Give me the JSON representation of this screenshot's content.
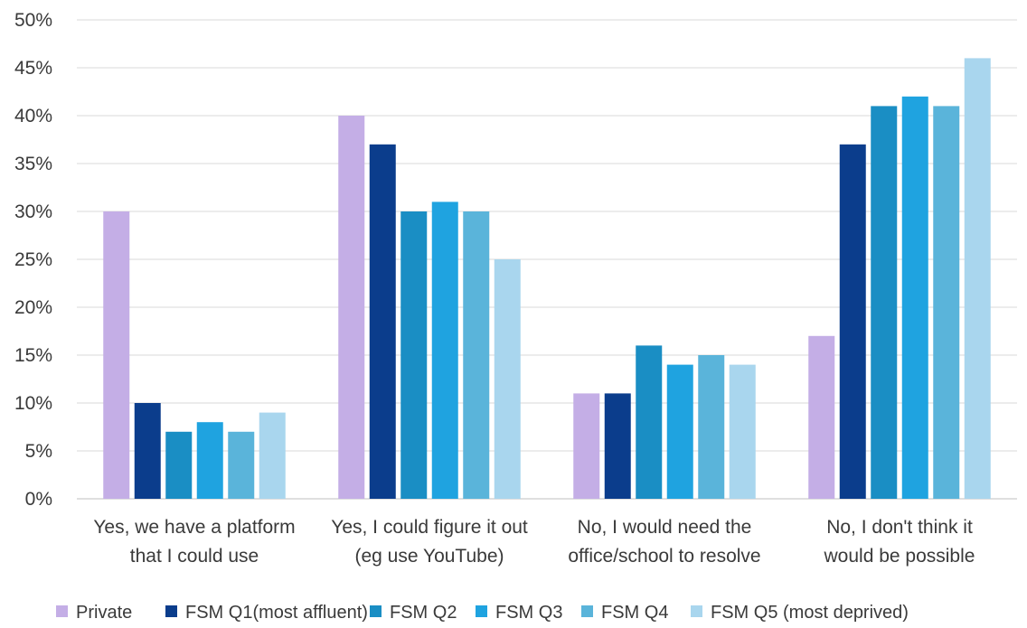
{
  "chart_data": {
    "type": "bar",
    "categories": [
      [
        "Yes, we have a platform",
        "that I could use"
      ],
      [
        "Yes, I could figure it out",
        "(eg use YouTube)"
      ],
      [
        "No, I would need the",
        "office/school to resolve"
      ],
      [
        "No, I don't think it",
        "would be possible"
      ]
    ],
    "series": [
      {
        "name": "Private",
        "color": "#c4aee6",
        "values": [
          30,
          40,
          11,
          17
        ]
      },
      {
        "name": "FSM Q1(most affluent)",
        "color": "#0b3d8c",
        "values": [
          10,
          37,
          11,
          37
        ]
      },
      {
        "name": "FSM Q2",
        "color": "#1a8ec4",
        "values": [
          7,
          30,
          16,
          41
        ]
      },
      {
        "name": "FSM Q3",
        "color": "#1fa3e0",
        "values": [
          8,
          31,
          14,
          42
        ]
      },
      {
        "name": "FSM Q4",
        "color": "#5ab4da",
        "values": [
          7,
          30,
          15,
          41
        ]
      },
      {
        "name": "FSM Q5 (most deprived)",
        "color": "#a9d6ee",
        "values": [
          9,
          25,
          14,
          46
        ]
      }
    ],
    "yticks": [
      "0%",
      "5%",
      "10%",
      "15%",
      "20%",
      "25%",
      "30%",
      "35%",
      "40%",
      "45%",
      "50%"
    ],
    "ylim": [
      0,
      50
    ],
    "grid": true,
    "legend_position": "bottom"
  }
}
